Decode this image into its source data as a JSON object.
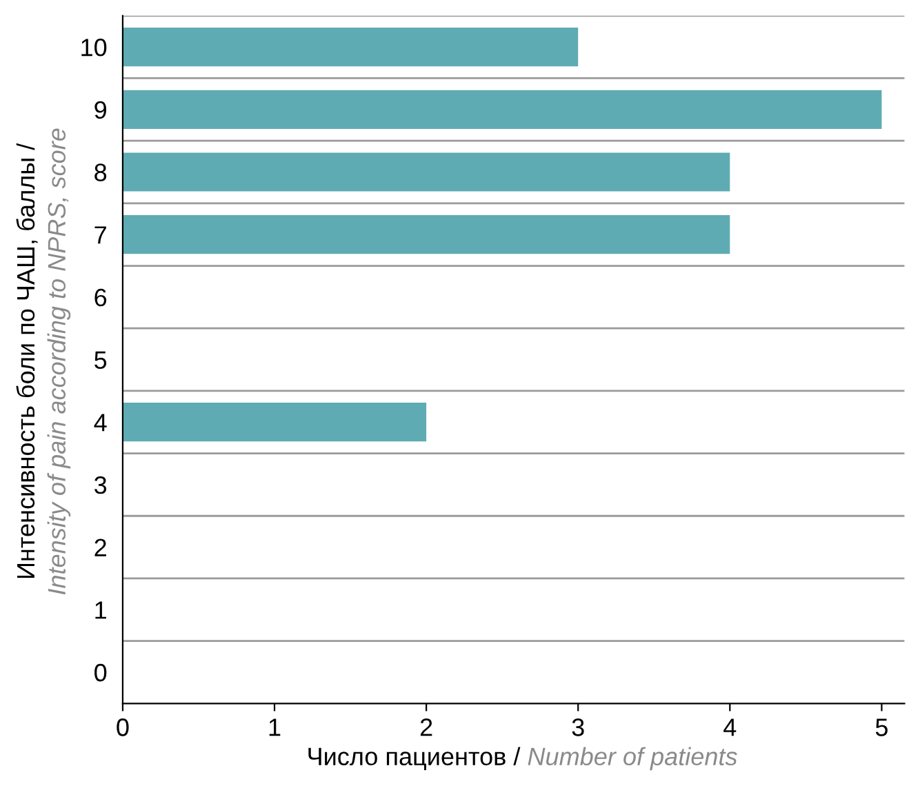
{
  "chart_data": {
    "type": "bar",
    "orientation": "horizontal",
    "xlabel": "Число пациентов / Number of patients",
    "ylabel": "Интенсивность боли по ЧАШ, баллы / Intensity of pain according to NPRS, score",
    "categories": [
      "10",
      "9",
      "8",
      "7",
      "6",
      "5",
      "4",
      "3",
      "2",
      "1",
      "0"
    ],
    "values": [
      3,
      5,
      4,
      4,
      0,
      0,
      2,
      0,
      0,
      0,
      0
    ],
    "color": "#5fabb3",
    "xlim": [
      0,
      5.15
    ],
    "xticks": [
      0,
      1,
      2,
      3,
      4,
      5
    ],
    "grid": "y"
  }
}
